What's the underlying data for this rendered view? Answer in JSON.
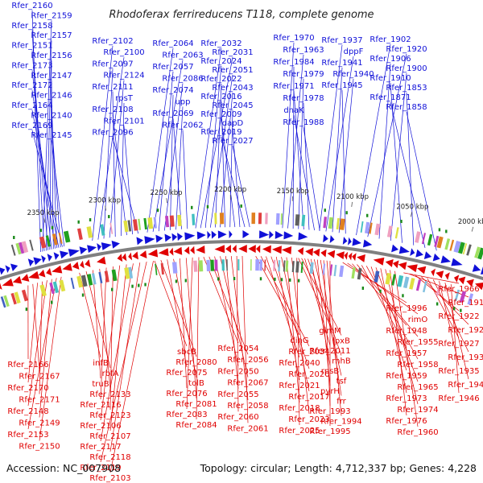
{
  "title": "Rhodoferax ferrireducens T118, complete genome",
  "accession": "Accession: NC_007908",
  "summary": "Topology: circular; Length: 4,712,337 bp; Genes: 4,228",
  "colors": {
    "plus_strand": "#1010d8",
    "minus_strand": "#e00000",
    "backbone": "#808080",
    "tick_mark": "#1a8a1a"
  },
  "scale_ticks": [
    "2000 kbp",
    "2050 kbp",
    "2100 kbp",
    "2150 kbp",
    "2200 kbp",
    "2250 kbp",
    "2300 kbp",
    "2350 kbp"
  ],
  "top_genes": [
    "Rfer_2160",
    "Rfer_2159",
    "Rfer_2158",
    "Rfer_2157",
    "Rfer_2151",
    "Rfer_2156",
    "Rfer_2173",
    "Rfer_2147",
    "Rfer_2172",
    "Rfer_2146",
    "Rfer_2164",
    "Rfer_2140",
    "Rfer_2169",
    "Rfer_2145",
    "Rfer_2102",
    "Rfer_2100",
    "Rfer_2097",
    "Rfer_2124",
    "Rfer_2111",
    "rpsT",
    "Rfer_2108",
    "Rfer_2101",
    "Rfer_2096",
    "Rfer_2064",
    "Rfer_2063",
    "Rfer_2057",
    "Rfer_2086",
    "Rfer_2074",
    "upp",
    "Rfer_2069",
    "Rfer_2062",
    "Rfer_2032",
    "Rfer_2031",
    "Rfer_2024",
    "Rfer_2051",
    "Rfer_2022",
    "Rfer_2043",
    "Rfer_2016",
    "Rfer_2045",
    "Rfer_2009",
    "dapD",
    "Rfer_2019",
    "Rfer_2027",
    "Rfer_1970",
    "Rfer_1963",
    "Rfer_1984",
    "Rfer_1979",
    "Rfer_1971",
    "Rfer_1978",
    "dnaK",
    "Rfer_1988",
    "Rfer_1937",
    "dppF",
    "Rfer_1941",
    "Rfer_1940",
    "Rfer_1945",
    "Rfer_1902",
    "Rfer_1920",
    "Rfer_1906",
    "Rfer_1900",
    "Rfer_1910",
    "Rfer_1853",
    "Rfer_1871",
    "Rfer_1858"
  ],
  "bottom_genes": [
    "Rfer_2166",
    "Rfer_2167",
    "Rfer_2170",
    "Rfer_2171",
    "Rfer_2148",
    "Rfer_2149",
    "Rfer_2153",
    "Rfer_2150",
    "infB",
    "rbfA",
    "truB",
    "Rfer_2133",
    "Rfer_2116",
    "Rfer_2123",
    "Rfer_2106",
    "Rfer_2107",
    "Rfer_2117",
    "Rfer_2118",
    "Rfer_2119",
    "Rfer_2103",
    "sbcB",
    "Rfer_2080",
    "Rfer_2075",
    "tolB",
    "Rfer_2076",
    "Rfer_2081",
    "Rfer_2083",
    "Rfer_2084",
    "Rfer_2054",
    "Rfer_2056",
    "Rfer_2050",
    "Rfer_2067",
    "Rfer_2055",
    "Rfer_2058",
    "Rfer_2060",
    "Rfer_2061",
    "dinG",
    "Rfer_2034",
    "Rfer_2040",
    "Rfer_2020",
    "Rfer_2021",
    "Rfer_2017",
    "Rfer_2018",
    "Rfer_2023",
    "Rfer_2025",
    "glmM",
    "lpxB",
    "Rfer_2011",
    "rnhB",
    "rpsB",
    "tsf",
    "pyrH",
    "frr",
    "Rfer_1993",
    "Rfer_1994",
    "Rfer_1995",
    "Rfer_1996",
    "rimO",
    "Rfer_1948",
    "Rfer_1955",
    "Rfer_1957",
    "Rfer_1958",
    "Rfer_1959",
    "Rfer_1965",
    "Rfer_1973",
    "Rfer_1974",
    "Rfer_1976",
    "Rfer_1960",
    "Rfer_1966",
    "Rfer_1919",
    "Rfer_1922",
    "Rfer_1923",
    "Rfer_1927",
    "Rfer_1930",
    "Rfer_1935",
    "Rfer_1943",
    "Rfer_1946",
    "Rfer_1947"
  ]
}
